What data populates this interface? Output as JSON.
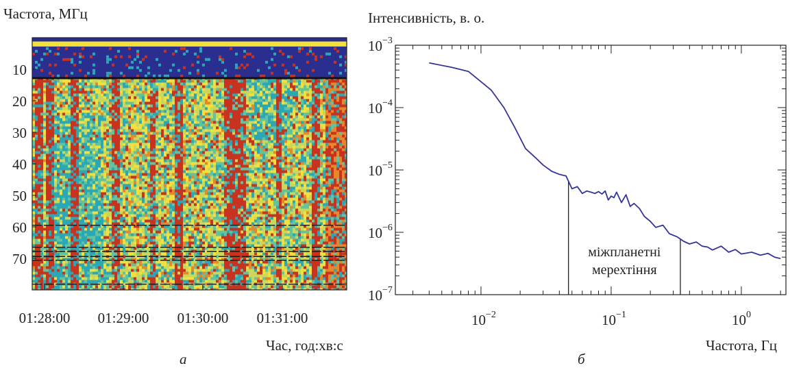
{
  "panels": [
    {
      "label": "а",
      "chart_data": {
        "type": "heatmap",
        "ylabel": "Частота, МГц",
        "xlabel": "Час, год:хв:с",
        "y_ticks": [
          10,
          20,
          30,
          40,
          50,
          60,
          70
        ],
        "x_ticks": [
          "01:28:00",
          "01:29:00",
          "01:30:00",
          "01:31:00"
        ],
        "ylim": [
          0,
          80
        ],
        "y_direction": "top-down",
        "colormap": [
          "#2a2f8f",
          "#2ba8b8",
          "#62c49e",
          "#c9d85a",
          "#f3e03a",
          "#e8862a",
          "#c8321e"
        ],
        "strong_bands_mhz": [
          5,
          10
        ]
      }
    },
    {
      "label": "б",
      "chart_data": {
        "type": "line",
        "ylabel": "Інтенсивність, в. о.",
        "xlabel": "Частота, Гц",
        "xscale": "log",
        "yscale": "log",
        "xlim": [
          0.0022,
          2.2
        ],
        "ylim": [
          1e-07,
          0.001
        ],
        "x_ticks": [
          {
            "base": "10",
            "exp": "−2"
          },
          {
            "base": "10",
            "exp": "−1"
          },
          {
            "base": "10",
            "exp": "0"
          }
        ],
        "y_ticks": [
          {
            "base": "10",
            "exp": "−3"
          },
          {
            "base": "10",
            "exp": "−4"
          },
          {
            "base": "10",
            "exp": "−5"
          },
          {
            "base": "10",
            "exp": "−6"
          },
          {
            "base": "10",
            "exp": "−7"
          }
        ],
        "series_color": "#333399",
        "series": [
          {
            "x": [
              0.004,
              0.006,
              0.008,
              0.01,
              0.012,
              0.015,
              0.018,
              0.022,
              0.026,
              0.03,
              0.035,
              0.04,
              0.045,
              0.05,
              0.055,
              0.06,
              0.065,
              0.07,
              0.075,
              0.08,
              0.085,
              0.09,
              0.095,
              0.1,
              0.105,
              0.11,
              0.12,
              0.13,
              0.14,
              0.15,
              0.165,
              0.18,
              0.2,
              0.22,
              0.25,
              0.28,
              0.32,
              0.36,
              0.4,
              0.45,
              0.5,
              0.55,
              0.6,
              0.7,
              0.8,
              0.9,
              1.0,
              1.2,
              1.4,
              1.6,
              1.8,
              2.0
            ],
            "y": [
              0.00052,
              0.00044,
              0.00038,
              0.00026,
              0.00019,
              0.0001,
              5e-05,
              2.2e-05,
              1.6e-05,
              1.2e-05,
              9.5e-06,
              8.5e-06,
              8e-06,
              5e-06,
              5.4e-06,
              4.2e-06,
              4.6e-06,
              4.4e-06,
              4.2e-06,
              4.5e-06,
              4.1e-06,
              4.6e-06,
              3.3e-06,
              3.8e-06,
              3.6e-06,
              4.4e-06,
              3e-06,
              4e-06,
              2.6e-06,
              2.9e-06,
              2.4e-06,
              1.8e-06,
              1.5e-06,
              1.2e-06,
              1.3e-06,
              9.5e-07,
              8.5e-07,
              7.2e-07,
              6.5e-07,
              7e-07,
              6e-07,
              5.8e-07,
              5.2e-07,
              6e-07,
              4.8e-07,
              5.3e-07,
              4.5e-07,
              4.8e-07,
              4.3e-07,
              4.6e-07,
              4e-07,
              3.8e-07
            ]
          }
        ],
        "annotation": {
          "lines": [
            "міжпланетні",
            "мерехтіння"
          ],
          "x_from": 0.047,
          "x_to": 0.34
        }
      }
    }
  ]
}
